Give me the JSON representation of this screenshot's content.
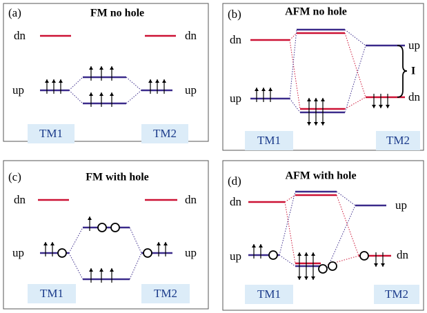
{
  "panels": [
    {
      "label": "(a)",
      "title": "FM no hole",
      "level_labels": [
        "dn",
        "dn",
        "up",
        "up"
      ],
      "sites": [
        "TM1",
        "TM2"
      ]
    },
    {
      "label": "(b)",
      "title": "AFM no hole",
      "level_labels": [
        "dn",
        "up",
        "up",
        "dn"
      ],
      "sites": [
        "TM1",
        "TM2"
      ]
    },
    {
      "label": "(c)",
      "title": "FM with hole",
      "level_labels": [
        "dn",
        "dn",
        "up",
        "up"
      ],
      "sites": [
        "TM1",
        "TM2"
      ]
    },
    {
      "label": "(d)",
      "title": "AFM with hole",
      "level_labels": [
        "dn",
        "up",
        "up",
        "dn"
      ],
      "sites": [
        "TM1",
        "TM2"
      ]
    }
  ],
  "gap_label": "I"
}
